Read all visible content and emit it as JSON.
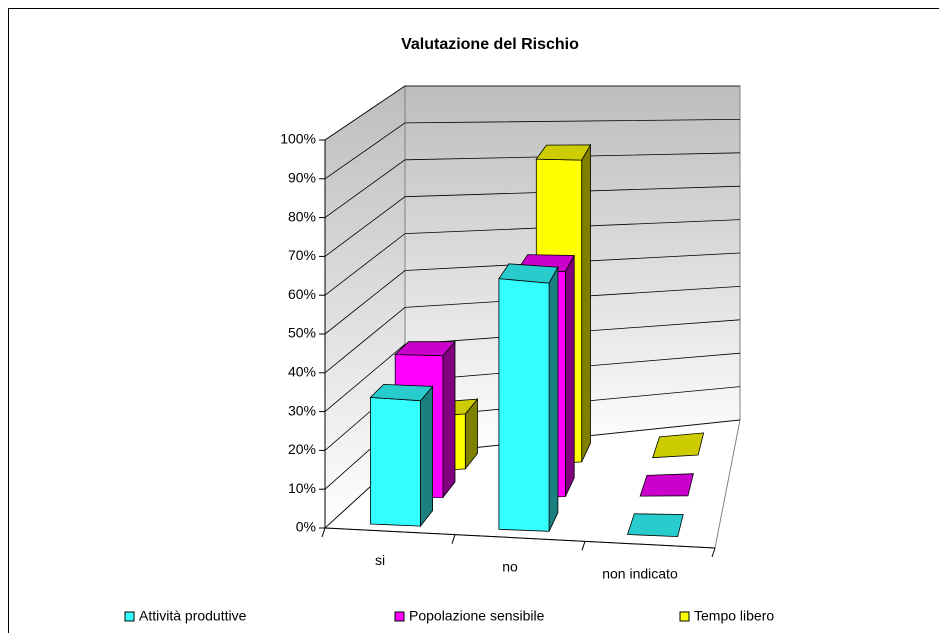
{
  "chart_data": {
    "type": "bar3d",
    "title": "Valutazione del Rischio",
    "categories": [
      "si",
      "no",
      "non indicato"
    ],
    "series": [
      {
        "name": "Attività produttive",
        "color": "#33ffff",
        "values": [
          33,
          67,
          0
        ]
      },
      {
        "name": "Popolazione sensibile",
        "color": "#ff00ff",
        "values": [
          38,
          62,
          0
        ]
      },
      {
        "name": "Tempo libero",
        "color": "#ffff00",
        "values": [
          15,
          85,
          0
        ]
      }
    ],
    "ylim": [
      0,
      100
    ],
    "yticks": [
      {
        "value": 0,
        "label": "0%"
      },
      {
        "value": 10,
        "label": "10%"
      },
      {
        "value": 20,
        "label": "20%"
      },
      {
        "value": 30,
        "label": "30%"
      },
      {
        "value": 40,
        "label": "40%"
      },
      {
        "value": 50,
        "label": "50%"
      },
      {
        "value": 60,
        "label": "60%"
      },
      {
        "value": 70,
        "label": "70%"
      },
      {
        "value": 80,
        "label": "80%"
      },
      {
        "value": 90,
        "label": "90%"
      },
      {
        "value": 100,
        "label": "100%"
      }
    ],
    "grid": true,
    "legend": "bottom"
  }
}
